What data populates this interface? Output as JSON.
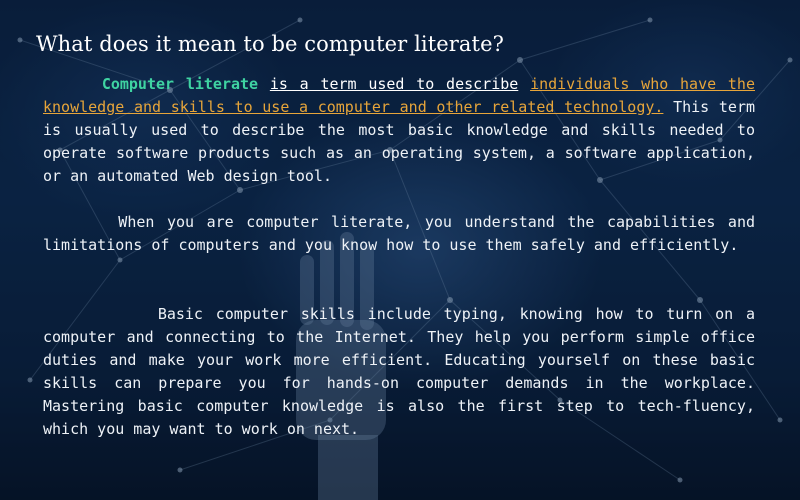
{
  "heading": "What does it mean to be computer literate?",
  "paragraph1": {
    "lead": "Computer literate",
    "part_underlined": "is a term used to describe",
    "part_highlight": "individuals who have the knowledge and skills to use a computer and other related technology.",
    "rest": "This term is usually used to describe the most basic knowledge and skills needed to operate software products such as an operating system, a software application, or an automated Web design tool."
  },
  "paragraph2": "When you are computer literate, you understand the capabilities and limitations of computers and you know how to use them safely and efficiently.",
  "paragraph3": "Basic computer skills include typing, knowing how to turn on a computer and connecting to the Internet. They help you perform simple office duties and make your work more efficient. Educating yourself on these basic skills can prepare you for hands-on computer demands in the workplace. Mastering basic computer knowledge is also the first step to tech-fluency, which you may want to work on next.",
  "colors": {
    "background": "#0b2446",
    "text": "#eef2f7",
    "lead": "#3fd3a2",
    "highlight": "#e7a53a"
  }
}
